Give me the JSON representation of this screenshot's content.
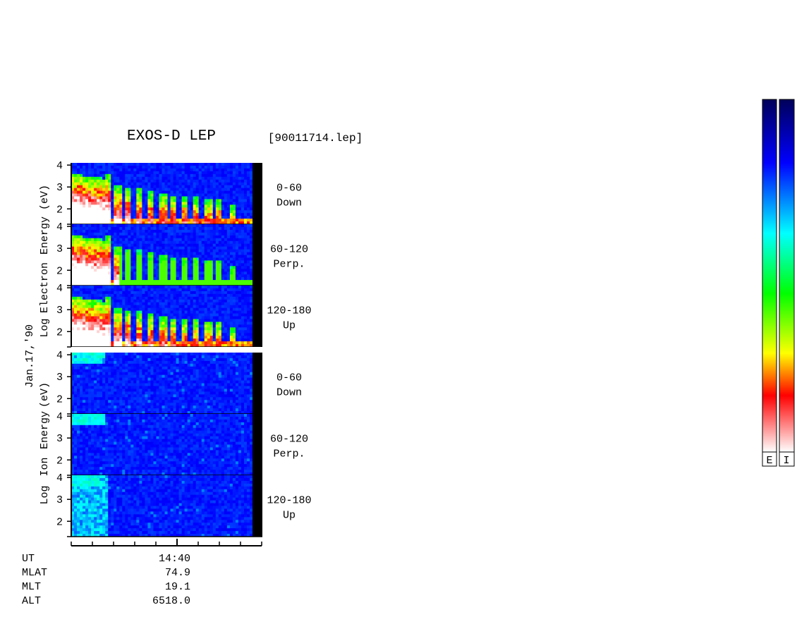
{
  "title": "EXOS-D LEP",
  "filename": "[90011714.lep]",
  "date_label": "Jan.17,'90",
  "group_labels": {
    "electron": [
      "Log",
      "Electron",
      "Energy",
      "(eV)"
    ],
    "ion": [
      "Log",
      "Ion",
      "Energy",
      "(eV)"
    ]
  },
  "panels": [
    {
      "group": "electron",
      "pitch": "0-60",
      "dir": "Down"
    },
    {
      "group": "electron",
      "pitch": "60-120",
      "dir": "Perp."
    },
    {
      "group": "electron",
      "pitch": "120-180",
      "dir": "Up"
    },
    {
      "group": "ion",
      "pitch": "0-60",
      "dir": "Down"
    },
    {
      "group": "ion",
      "pitch": "60-120",
      "dir": "Perp."
    },
    {
      "group": "ion",
      "pitch": "120-180",
      "dir": "Up"
    }
  ],
  "chart_data": {
    "type": "heatmap",
    "y_axis": {
      "ticks": [
        2,
        3,
        4
      ],
      "ylim": [
        1.3,
        4.1
      ],
      "scale": "log10 energy (eV)"
    },
    "x_axis": {
      "major_tick": "14:40"
    },
    "colorbar_labels": [
      "E",
      "I"
    ],
    "colorbar_colors": [
      "#00005a",
      "#0000ff",
      "#00ffff",
      "#00ff00",
      "#ffff00",
      "#ff0000",
      "#ffffff"
    ],
    "electron_burst_profile": {
      "description_source": "visual bands",
      "burst_times_fraction": [
        0.03,
        0.09,
        0.14,
        0.19,
        0.25,
        0.31,
        0.37,
        0.43,
        0.5,
        0.56,
        0.62,
        0.68,
        0.75,
        0.81,
        0.88
      ],
      "peak_log_energy": [
        3.6,
        3.5,
        3.4,
        3.6,
        3.1,
        3.0,
        2.9,
        2.8,
        2.7,
        2.6,
        2.6,
        2.6,
        2.5,
        2.5,
        2.2
      ]
    },
    "ion_beam_profile": {
      "start_fraction": 0.0,
      "end_fraction": 0.18,
      "log_energy": 3.8
    }
  },
  "bottom_rows": [
    {
      "label": "UT",
      "value": "14:40"
    },
    {
      "label": "MLAT",
      "value": "74.9"
    },
    {
      "label": "MLT",
      "value": "19.1"
    },
    {
      "label": "ALT",
      "value": "6518.0"
    }
  ]
}
